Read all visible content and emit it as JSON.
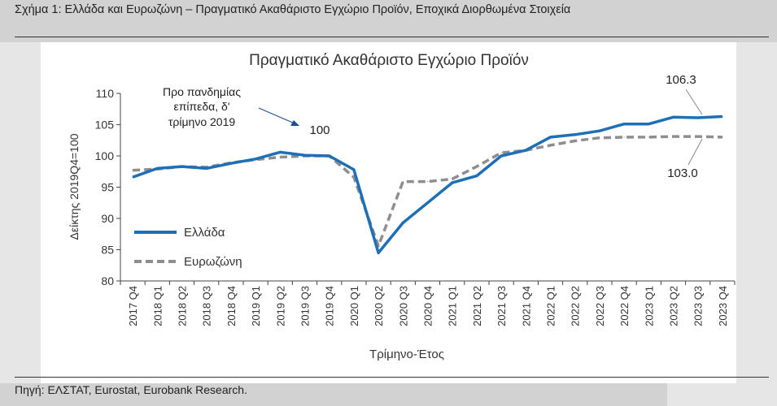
{
  "header": {
    "figure_title": "Σχήμα 1: Ελλάδα και Ευρωζώνη – Πραγματικό Ακαθάριστο Εγχώριο Προϊόν, Εποχικά Διορθωμένα Στοιχεία"
  },
  "footer": {
    "source": "Πηγή: ΕΛΣΤΑΤ, Eurostat, Eurobank Research."
  },
  "colors": {
    "greece": "#1d6fb8",
    "eurozone": "#8e8e8e"
  },
  "chart_data": {
    "type": "line",
    "title": "Πραγματικό Ακαθάριστο Εγχώριο Προϊόν",
    "xlabel": "Τρίμηνο-Έτος",
    "ylabel": "Δείκτης 2019Q4=100",
    "ylim": [
      80,
      110
    ],
    "yticks": [
      80,
      85,
      90,
      95,
      100,
      105,
      110
    ],
    "grid": false,
    "legend_position": "left",
    "categories": [
      "2017 Q4",
      "2018 Q1",
      "2018 Q2",
      "2018 Q3",
      "2018 Q4",
      "2019 Q1",
      "2019 Q2",
      "2019 Q3",
      "2019 Q4",
      "2020 Q1",
      "2020 Q2",
      "2020 Q3",
      "2020 Q4",
      "2021 Q1",
      "2021 Q2",
      "2021 Q3",
      "2021 Q4",
      "2022 Q1",
      "2022 Q2",
      "2022 Q3",
      "2022 Q4",
      "2023 Q1",
      "2023 Q2",
      "2023 Q3",
      "2023 Q4"
    ],
    "series": [
      {
        "name": "Ελλάδα",
        "values": [
          96.6,
          98.0,
          98.3,
          98.0,
          98.8,
          99.5,
          100.6,
          100.1,
          100.0,
          97.8,
          84.5,
          89.3,
          92.5,
          95.7,
          96.8,
          100.0,
          100.9,
          103.0,
          103.4,
          104.0,
          105.1,
          105.1,
          106.2,
          106.1,
          106.3
        ]
      },
      {
        "name": "Ευρωζώνη",
        "values": [
          97.7,
          97.9,
          98.3,
          98.2,
          98.9,
          99.4,
          99.8,
          100.0,
          100.0,
          96.6,
          85.6,
          95.9,
          95.9,
          96.3,
          98.3,
          100.5,
          100.9,
          101.7,
          102.4,
          102.9,
          103.0,
          103.0,
          103.1,
          103.1,
          103.0
        ]
      }
    ],
    "annotations": {
      "pre_pandemic_line1": "Προ πανδημίας",
      "pre_pandemic_line2": "επίπεδα, δ'",
      "pre_pandemic_line3": "τρίμηνο 2019",
      "pre_pandemic_value": "100",
      "greece_last": "106.3",
      "eurozone_last": "103.0"
    }
  }
}
